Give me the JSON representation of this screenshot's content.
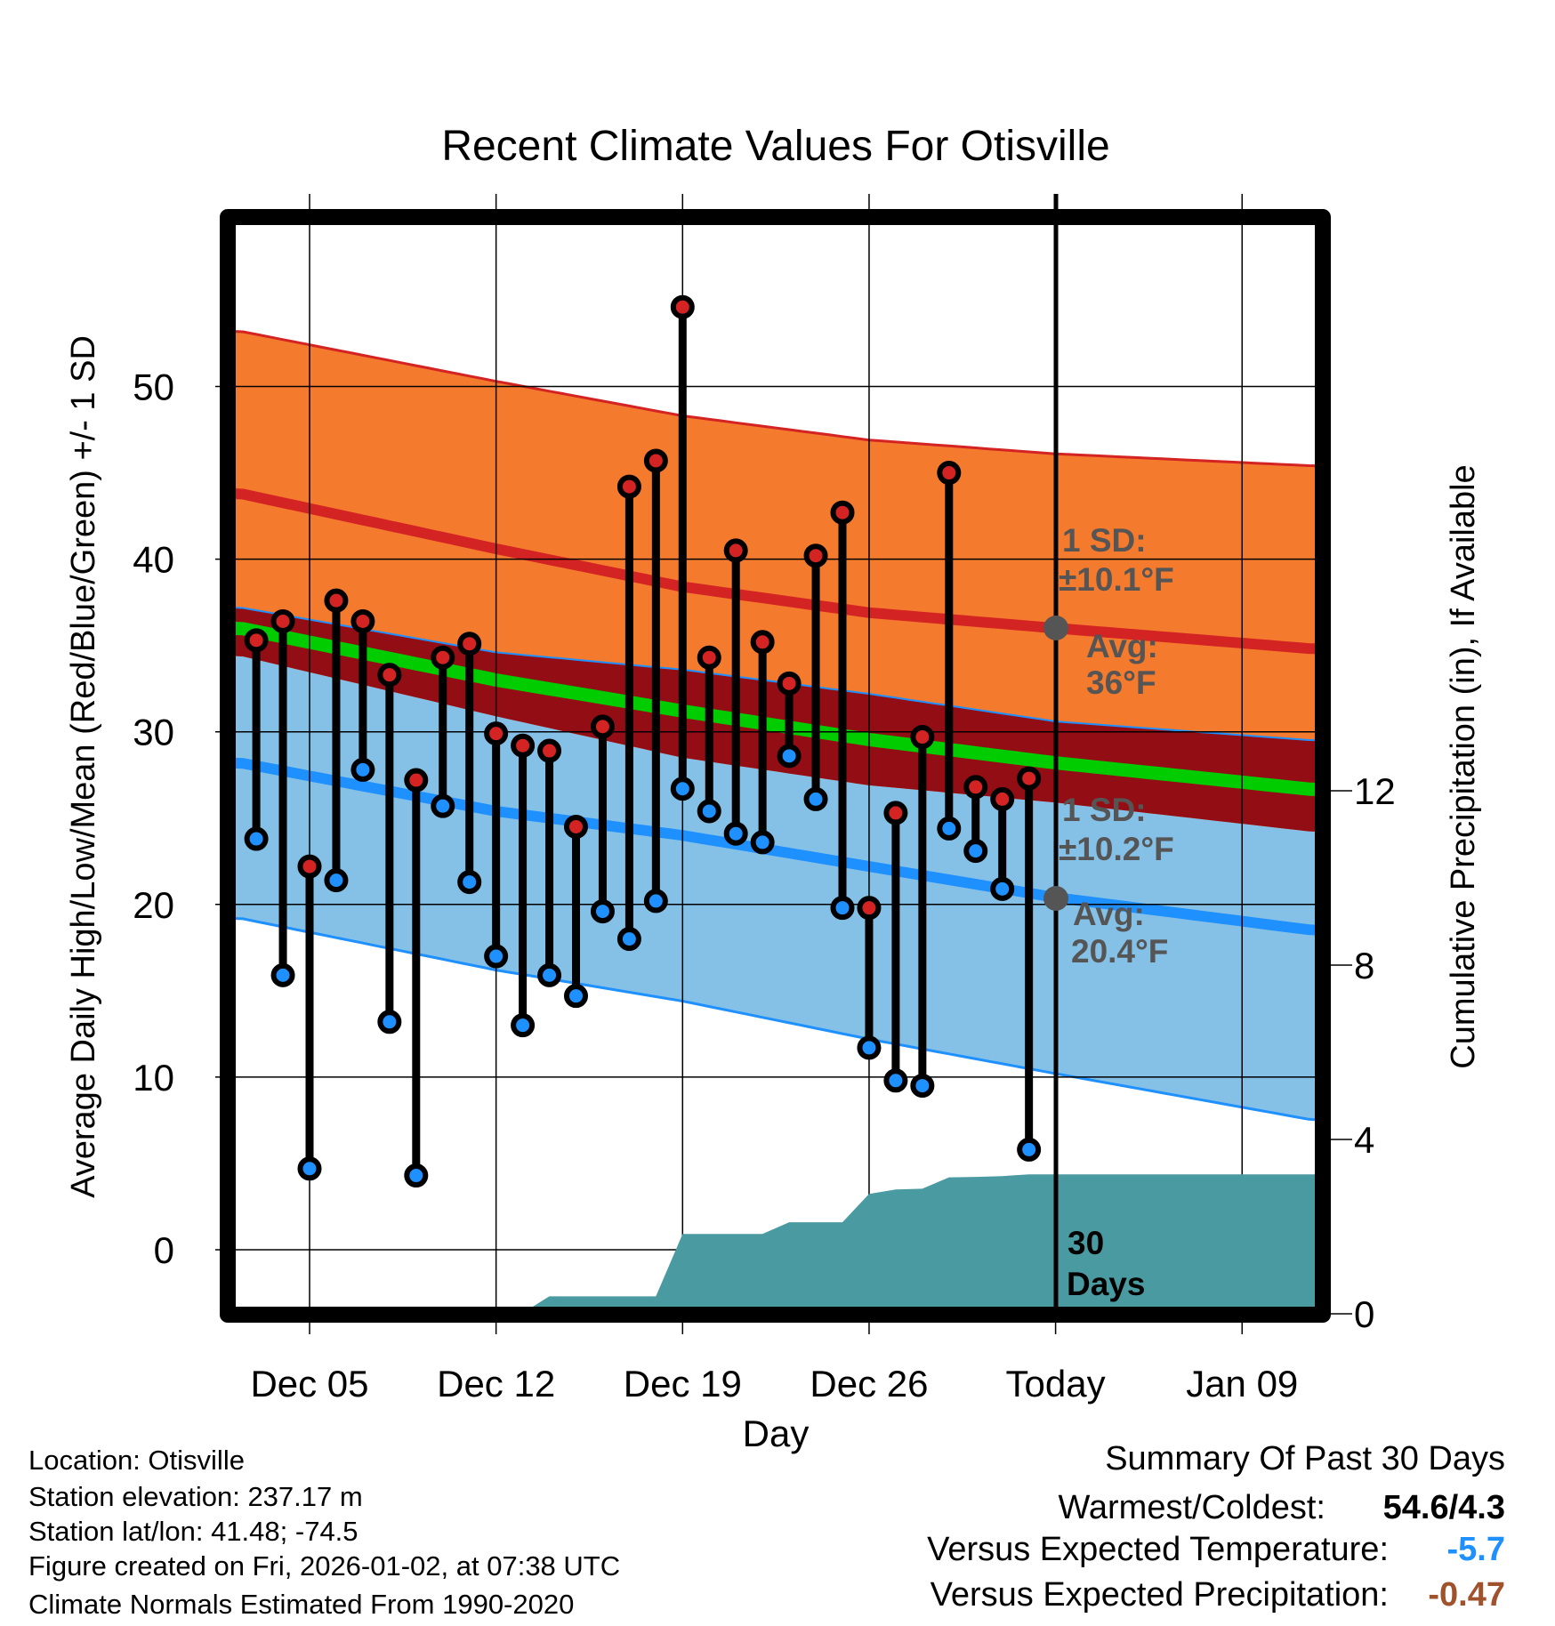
{
  "chart_data": {
    "type": "line",
    "title": "Recent Climate Values For Otisville",
    "xlabel": "Day",
    "ylabel": "Average Daily High/Low/Mean (Red/Blue/Green) +/- 1 SD",
    "y2label": "Cumulative Precipitation (in), If Available",
    "ylim": [
      -3.7,
      59.8
    ],
    "y2lim": [
      0,
      25.2
    ],
    "xlim_days_from_dec05": [
      -2.6,
      37.7
    ],
    "grid": true,
    "yticks": [
      "0",
      "10",
      "20",
      "30",
      "40",
      "50"
    ],
    "yticks_values": [
      0,
      10,
      20,
      30,
      40,
      50
    ],
    "y2ticks": [
      "0",
      "4",
      "8",
      "12"
    ],
    "y2ticks_values": [
      0,
      4,
      8,
      12
    ],
    "xticks": [
      {
        "label": "Dec 05",
        "day": 0
      },
      {
        "label": "Dec 12",
        "day": 7
      },
      {
        "label": "Dec 19",
        "day": 14
      },
      {
        "label": "Dec 26",
        "day": 21
      },
      {
        "label": "Today",
        "day": 28
      },
      {
        "label": "Jan 09",
        "day": 35
      }
    ],
    "days": [
      "Dec 03",
      "Dec 04",
      "Dec 05",
      "Dec 06",
      "Dec 07",
      "Dec 08",
      "Dec 09",
      "Dec 10",
      "Dec 11",
      "Dec 12",
      "Dec 13",
      "Dec 14",
      "Dec 15",
      "Dec 16",
      "Dec 17",
      "Dec 18",
      "Dec 19",
      "Dec 20",
      "Dec 21",
      "Dec 22",
      "Dec 23",
      "Dec 24",
      "Dec 25",
      "Dec 26",
      "Dec 27",
      "Dec 28",
      "Dec 29",
      "Dec 30",
      "Dec 31",
      "Jan 01"
    ],
    "highs": [
      35.3,
      36.4,
      22.2,
      37.6,
      36.4,
      33.3,
      27.2,
      34.3,
      35.1,
      29.9,
      29.2,
      28.9,
      24.5,
      30.3,
      44.2,
      45.7,
      54.6,
      34.3,
      40.5,
      35.2,
      32.8,
      40.2,
      42.7,
      19.8,
      25.3,
      29.7,
      45.0,
      26.8,
      26.1,
      27.3
    ],
    "lows": [
      23.8,
      15.9,
      4.7,
      21.4,
      27.8,
      13.2,
      4.3,
      25.7,
      21.3,
      17.0,
      13.0,
      15.9,
      14.7,
      19.6,
      18.0,
      20.2,
      26.7,
      25.4,
      24.1,
      23.6,
      28.6,
      26.1,
      19.8,
      11.7,
      9.8,
      9.5,
      24.4,
      23.1,
      20.9,
      5.8
    ],
    "precip_cumulative": [
      0,
      0,
      0,
      0,
      0,
      0,
      0,
      0,
      0,
      0,
      0.02,
      0.4,
      0.4,
      0.4,
      0.4,
      0.4,
      1.83,
      1.83,
      1.83,
      1.83,
      2.1,
      2.1,
      2.1,
      2.75,
      2.85,
      2.87,
      3.13,
      3.14,
      3.16,
      3.2
    ],
    "normals": {
      "days_from_dec05": [
        -2.6,
        7,
        14,
        21,
        28,
        37.7
      ],
      "high_avg": [
        43.8,
        40.6,
        38.4,
        36.9,
        36.0,
        34.8
      ],
      "high_sd": [
        9.4,
        9.7,
        9.9,
        10.0,
        10.1,
        10.6
      ],
      "low_avg": [
        28.2,
        25.4,
        24.0,
        22.2,
        20.4,
        18.5
      ],
      "low_sd": [
        9.0,
        9.2,
        9.6,
        10.0,
        10.2,
        11.0
      ]
    },
    "annotations": {
      "high_sd_label": "1 SD:",
      "high_sd_value": "±10.1°F",
      "high_avg_label": "Avg:",
      "high_avg_value": "36°F",
      "low_sd_label": "1 SD:",
      "low_sd_value": "±10.2°F",
      "low_avg_label": "Avg:",
      "low_avg_value": "20.4°F",
      "period_line1": "30",
      "period_line2": "Days"
    },
    "colors": {
      "high_band": "#f47a2e",
      "high_line": "#d42323",
      "overlap": "#930d14",
      "mean": "#00cc00",
      "low_band": "#85c1e6",
      "low_line": "#1e90ff",
      "precip": "#4a9aa2",
      "annotation": "#555555"
    }
  },
  "footer": {
    "location": "Location: Otisville",
    "elevation": "Station elevation: 237.17 m",
    "latlon": "Station lat/lon: 41.48; -74.5",
    "created": "Figure created on Fri, 2026-01-02, at 07:38 UTC",
    "normals": "Climate Normals Estimated From 1990-2020"
  },
  "summary": {
    "title": "Summary Of Past 30 Days",
    "warmest_coldest_label": "Warmest/Coldest:",
    "warmest_coldest_value": "54.6/4.3",
    "temp_label": "Versus Expected Temperature:",
    "temp_value": "-5.7",
    "temp_color": "#1e90ff",
    "precip_label": "Versus Expected Precipitation:",
    "precip_value": "-0.47",
    "precip_color": "#a0522d"
  }
}
